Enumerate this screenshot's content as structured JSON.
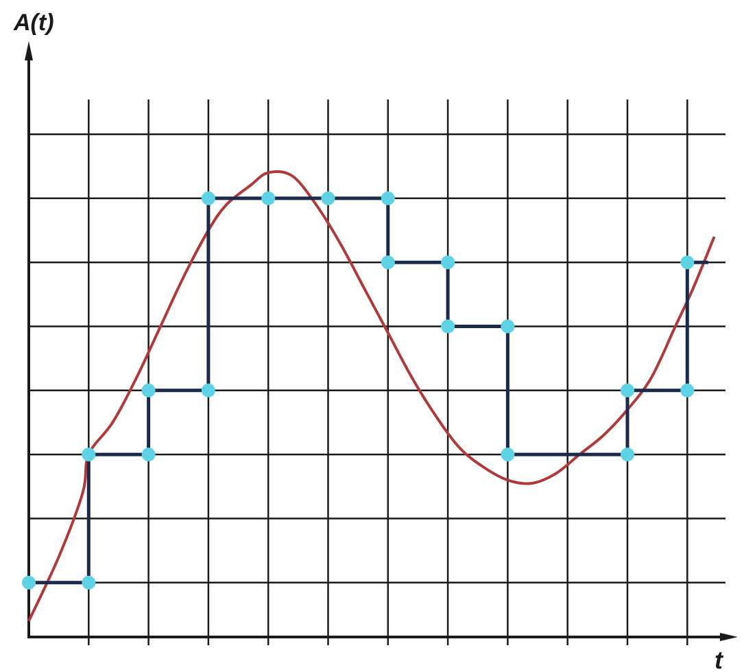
{
  "chart_data": {
    "type": "line",
    "xlabel": "A(t)",
    "ylabel": "",
    "axis_labels": {
      "y": "A(t)",
      "x": "t"
    },
    "grid": true,
    "xlim": [
      0,
      11.6
    ],
    "ylim": [
      0,
      9.2
    ],
    "colors": {
      "analog": "#b03a3a",
      "quantized": "#1b2a4a",
      "sample_point": "#5fd3e6",
      "grid": "#1a1a1a"
    },
    "series": [
      {
        "role": "analog-signal",
        "x": [
          0,
          0.5,
          0.9,
          1.0,
          1.4,
          1.8,
          2.2,
          2.6,
          3.0,
          3.3,
          3.7,
          4.0,
          4.4,
          4.8,
          5.2,
          5.6,
          6.0,
          6.4,
          6.8,
          7.2,
          7.6,
          8.0,
          8.4,
          8.8,
          9.2,
          9.6,
          10.0,
          10.4,
          10.8,
          11.1,
          11.45
        ],
        "y": [
          0.4,
          1.4,
          2.4,
          3.0,
          3.5,
          4.2,
          5.0,
          5.8,
          6.5,
          6.9,
          7.2,
          7.4,
          7.35,
          6.9,
          6.3,
          5.6,
          4.9,
          4.2,
          3.6,
          3.1,
          2.8,
          2.6,
          2.55,
          2.7,
          3.0,
          3.3,
          3.7,
          4.2,
          5.0,
          5.6,
          6.4
        ]
      },
      {
        "role": "quantized-staircase",
        "x": [
          0,
          1,
          1,
          2,
          2,
          3,
          3,
          4,
          5,
          6,
          6,
          7,
          7,
          8,
          8,
          9,
          10,
          10,
          11,
          11,
          11.35
        ],
        "y": [
          1,
          1,
          3,
          3,
          4,
          4,
          7,
          7,
          7,
          7,
          6,
          6,
          5,
          5,
          3,
          3,
          3,
          4,
          4,
          6,
          6
        ]
      },
      {
        "role": "sample-points",
        "x": [
          0,
          1,
          1,
          2,
          2,
          3,
          3,
          4,
          5,
          6,
          6,
          7,
          7,
          8,
          8,
          10,
          10,
          11,
          11
        ],
        "y": [
          1,
          1,
          3,
          3,
          4,
          4,
          7,
          7,
          7,
          7,
          6,
          6,
          5,
          5,
          3,
          3,
          4,
          4,
          6
        ]
      }
    ]
  }
}
